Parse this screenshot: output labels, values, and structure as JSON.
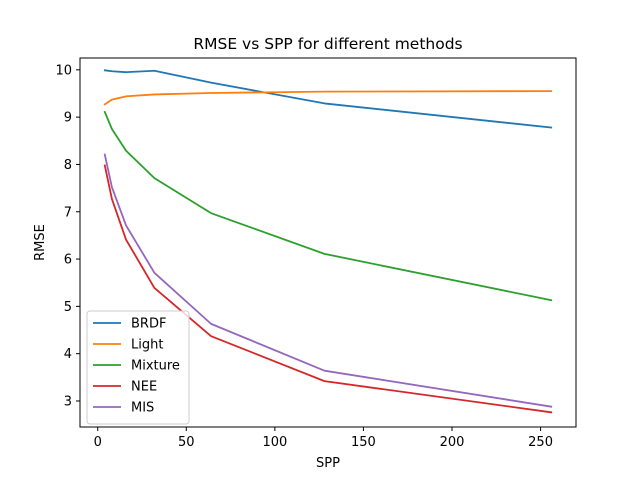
{
  "chart_data": {
    "type": "line",
    "title": "RMSE vs SPP for different methods",
    "xlabel": "SPP",
    "ylabel": "RMSE",
    "xlim": [
      -10,
      270
    ],
    "ylim": [
      2.45,
      10.25
    ],
    "xticks": [
      0,
      50,
      100,
      150,
      200,
      250
    ],
    "yticks": [
      3,
      4,
      5,
      6,
      7,
      8,
      9,
      10
    ],
    "grid": false,
    "legend_position": "lower-left",
    "x": [
      4,
      8,
      16,
      32,
      64,
      128,
      256
    ],
    "series": [
      {
        "name": "BRDF",
        "color": "#1f77b4",
        "values": [
          9.99,
          9.97,
          9.95,
          9.98,
          9.73,
          9.29,
          8.78
        ]
      },
      {
        "name": "Light",
        "color": "#ff7f0e",
        "values": [
          9.27,
          9.37,
          9.44,
          9.48,
          9.51,
          9.54,
          9.55
        ]
      },
      {
        "name": "Mixture",
        "color": "#2ca02c",
        "values": [
          9.11,
          8.75,
          8.29,
          7.71,
          6.97,
          6.11,
          5.13
        ]
      },
      {
        "name": "NEE",
        "color": "#d62728",
        "values": [
          7.98,
          7.27,
          6.41,
          5.39,
          4.37,
          3.42,
          2.76
        ]
      },
      {
        "name": "MIS",
        "color": "#9467bd",
        "values": [
          8.21,
          7.52,
          6.71,
          5.71,
          4.63,
          3.64,
          2.88
        ]
      }
    ]
  }
}
